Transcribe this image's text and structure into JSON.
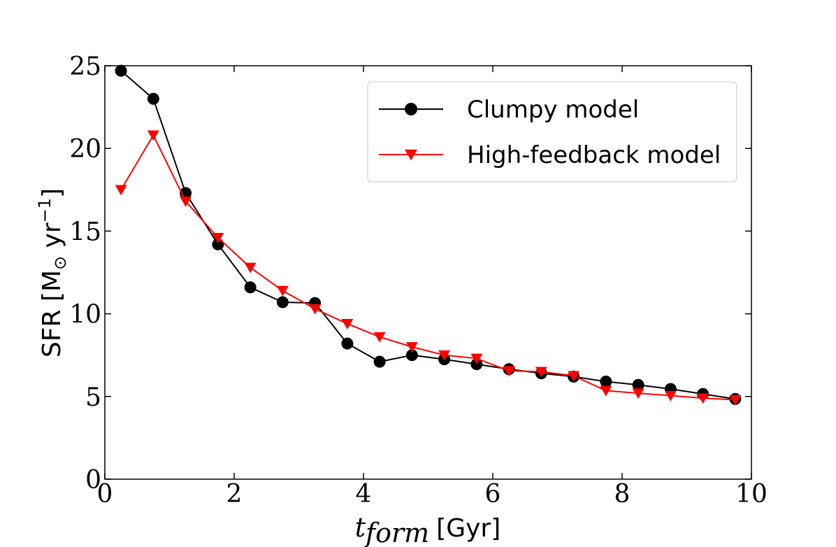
{
  "chart_data": {
    "type": "line",
    "xlabel": {
      "main": "t",
      "subscript": "form",
      "unit": "[Gyr]"
    },
    "ylabel": {
      "prefix": "SFR [M",
      "sun_subscript": "⊙",
      "middle": " yr",
      "superscript": "−1",
      "suffix": "]"
    },
    "xlim": [
      0,
      10
    ],
    "ylim": [
      0,
      25
    ],
    "xticks": [
      0,
      2,
      4,
      6,
      8,
      10
    ],
    "yticks": [
      0,
      5,
      10,
      15,
      20,
      25
    ],
    "grid": false,
    "legend_position": "top-right",
    "x": [
      0.25,
      0.75,
      1.25,
      1.75,
      2.25,
      2.75,
      3.25,
      3.75,
      4.25,
      4.75,
      5.25,
      5.75,
      6.25,
      6.75,
      7.25,
      7.75,
      8.25,
      8.75,
      9.25,
      9.75
    ],
    "series": [
      {
        "name": "Clumpy model",
        "color": "#000000",
        "marker": "circle",
        "values": [
          24.7,
          23.0,
          17.3,
          14.2,
          11.6,
          10.7,
          10.65,
          8.2,
          7.1,
          7.5,
          7.25,
          6.95,
          6.65,
          6.4,
          6.2,
          5.9,
          5.7,
          5.45,
          5.15,
          4.85
        ]
      },
      {
        "name": "High-feedback model",
        "color": "#ff0000",
        "marker": "triangle-down",
        "values": [
          17.5,
          20.8,
          16.8,
          14.6,
          12.8,
          11.4,
          10.3,
          9.4,
          8.6,
          8.0,
          7.5,
          7.3,
          6.55,
          6.5,
          6.25,
          5.35,
          5.2,
          5.05,
          4.9,
          4.8
        ]
      }
    ]
  }
}
